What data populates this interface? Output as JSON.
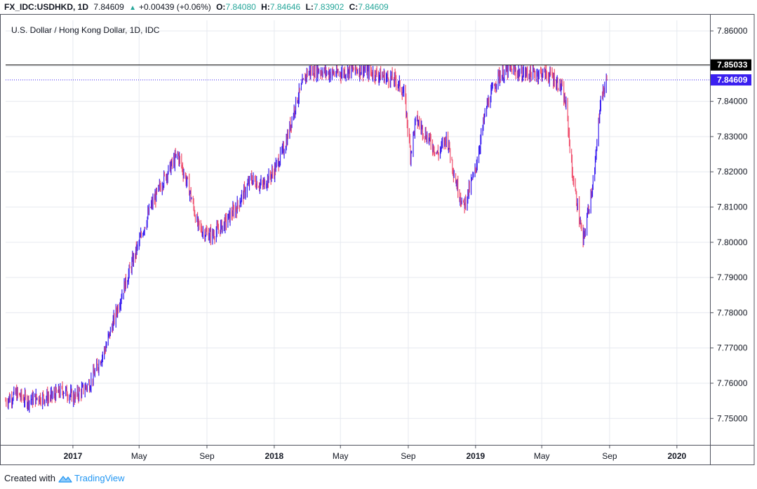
{
  "header": {
    "symbol": "FX_IDC:USDHKD, 1D",
    "last": "7.84609",
    "change": "+0.00439 (+0.06%)",
    "o_label": "O:",
    "o": "7.84080",
    "h_label": "H:",
    "h": "7.84646",
    "l_label": "L:",
    "l": "7.83902",
    "c_label": "C:",
    "c": "7.84609"
  },
  "footer": {
    "created": "Created with",
    "brand": "TradingView"
  },
  "colors": {
    "up": "#3a1ff0",
    "down": "#f0506e",
    "grid": "#e6e9ef",
    "price_tag": "#3a1ff0",
    "resistance_tag": "#000000"
  },
  "chart_data": {
    "type": "line",
    "title": "U.S. Dollar / Hong Kong Dollar, 1D, IDC",
    "xlabel": "",
    "ylabel": "",
    "x_ticks": [
      "2017",
      "May",
      "Sep",
      "2018",
      "May",
      "Sep",
      "2019",
      "May",
      "Sep",
      "2020"
    ],
    "x_tick_dates": [
      "2017-01-01",
      "2017-05-01",
      "2017-09-01",
      "2018-01-01",
      "2018-05-01",
      "2018-09-01",
      "2019-01-01",
      "2019-05-01",
      "2019-09-01",
      "2020-01-01"
    ],
    "y_ticks": [
      "7.86000",
      "7.85000",
      "7.84000",
      "7.83000",
      "7.82000",
      "7.81000",
      "7.80000",
      "7.79000",
      "7.78000",
      "7.77000",
      "7.76000",
      "7.75000"
    ],
    "ylim": [
      7.7425,
      7.863
    ],
    "xlim": [
      "2016-09-01",
      "2020-03-01"
    ],
    "grid": true,
    "resistance_level": "7.85033",
    "last_price": "7.84609",
    "series": [
      {
        "x": [
          "2016-09-01",
          "2016-09-20",
          "2016-10-10",
          "2016-10-31",
          "2016-11-20",
          "2016-12-15",
          "2017-01-03",
          "2017-02-01",
          "2017-03-01",
          "2017-03-30",
          "2017-05-01",
          "2017-05-22",
          "2017-06-15",
          "2017-07-10",
          "2017-07-31",
          "2017-08-15",
          "2017-08-25",
          "2017-09-10",
          "2017-10-01",
          "2017-10-25",
          "2017-11-20",
          "2017-12-10",
          "2017-12-31",
          "2018-01-20",
          "2018-02-10",
          "2018-03-01",
          "2018-03-20",
          "2018-04-10",
          "2018-04-30",
          "2018-05-20",
          "2018-06-10",
          "2018-06-30",
          "2018-07-20",
          "2018-08-10",
          "2018-08-25",
          "2018-09-05",
          "2018-09-15",
          "2018-10-05",
          "2018-10-25",
          "2018-11-10",
          "2018-11-25",
          "2018-12-10",
          "2018-12-31",
          "2019-01-20",
          "2019-02-10",
          "2019-03-05",
          "2019-03-25",
          "2019-04-15",
          "2019-05-05",
          "2019-05-20",
          "2019-06-05",
          "2019-06-15",
          "2019-06-25",
          "2019-07-05",
          "2019-07-15",
          "2019-07-25",
          "2019-08-05",
          "2019-08-15",
          "2019-08-27"
        ],
        "values": [
          7.755,
          7.757,
          7.755,
          7.756,
          7.756,
          7.758,
          7.756,
          7.76,
          7.77,
          7.785,
          7.8,
          7.81,
          7.818,
          7.825,
          7.815,
          7.805,
          7.803,
          7.802,
          7.805,
          7.81,
          7.818,
          7.816,
          7.82,
          7.827,
          7.84,
          7.848,
          7.849,
          7.848,
          7.848,
          7.849,
          7.849,
          7.848,
          7.847,
          7.846,
          7.842,
          7.825,
          7.835,
          7.83,
          7.825,
          7.83,
          7.818,
          7.81,
          7.82,
          7.838,
          7.847,
          7.849,
          7.848,
          7.848,
          7.848,
          7.847,
          7.844,
          7.838,
          7.82,
          7.81,
          7.8,
          7.81,
          7.82,
          7.84,
          7.8461
        ]
      }
    ]
  }
}
